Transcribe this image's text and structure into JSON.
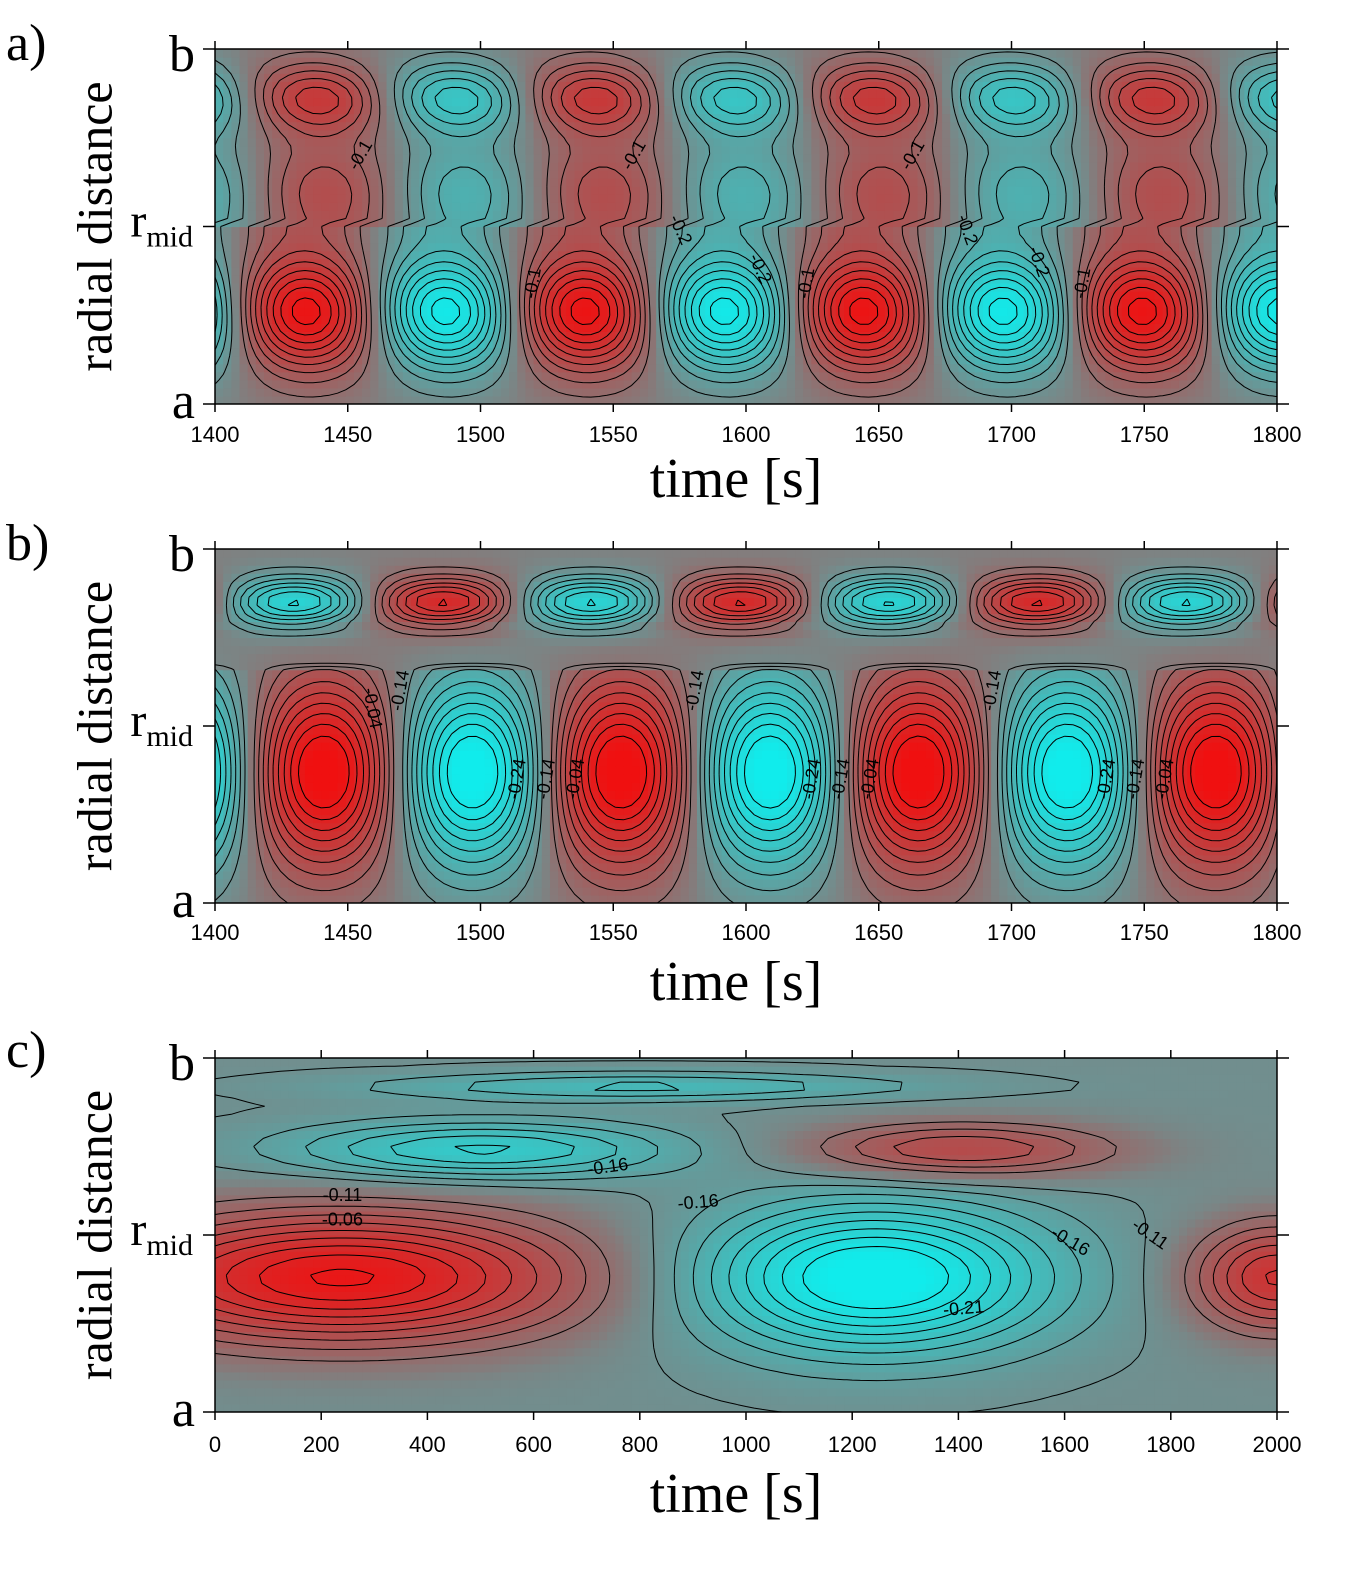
{
  "colors": {
    "positive": "#f01010",
    "negative": "#10ecec",
    "neutral": "#808080",
    "contour": "#000000"
  },
  "chart_data": [
    {
      "type": "heatmap",
      "panel_label": "a)",
      "xlabel": "time [s]",
      "ylabel": "radial distance",
      "y_ticks": [
        "a",
        "r",
        "b"
      ],
      "y_tick_sub": "mid",
      "x_ticks": [
        "1400",
        "1450",
        "1500",
        "1550",
        "1600",
        "1650",
        "1700",
        "1750",
        "1800"
      ],
      "xlim": [
        1400,
        1800
      ],
      "contour_labels": [
        "-0.1",
        "-0.2"
      ],
      "labels": [
        {
          "text": "-0.1",
          "x": 1455,
          "y": 0.7,
          "rot": -60
        },
        {
          "text": "-0.1",
          "x": 1520,
          "y": 0.34,
          "rot": -80
        },
        {
          "text": "-0.1",
          "x": 1558,
          "y": 0.7,
          "rot": -60
        },
        {
          "text": "-0.2",
          "x": 1575,
          "y": 0.49,
          "rot": 65
        },
        {
          "text": "-0.2",
          "x": 1605,
          "y": 0.38,
          "rot": 65
        },
        {
          "text": "-0.1",
          "x": 1623,
          "y": 0.34,
          "rot": -80
        },
        {
          "text": "-0.1",
          "x": 1663,
          "y": 0.7,
          "rot": -60
        },
        {
          "text": "-0.2",
          "x": 1683,
          "y": 0.49,
          "rot": 70
        },
        {
          "text": "-0.2",
          "x": 1710,
          "y": 0.4,
          "rot": 70
        },
        {
          "text": "-0.1",
          "x": 1727,
          "y": 0.34,
          "rot": -80
        }
      ]
    },
    {
      "type": "heatmap",
      "panel_label": "b)",
      "xlabel": "time [s]",
      "ylabel": "radial distance",
      "y_ticks": [
        "a",
        "r",
        "b"
      ],
      "y_tick_sub": "mid",
      "x_ticks": [
        "1400",
        "1450",
        "1500",
        "1550",
        "1600",
        "1650",
        "1700",
        "1750",
        "1800"
      ],
      "xlim": [
        1400,
        1800
      ],
      "contour_labels": [
        "-0.04",
        "-0.14",
        "-0.24"
      ],
      "labels": [
        {
          "text": "-0.04",
          "x": 1459,
          "y": 0.55,
          "rot": 80
        },
        {
          "text": "-0.14",
          "x": 1470,
          "y": 0.6,
          "rot": -80
        },
        {
          "text": "-0.24",
          "x": 1514,
          "y": 0.35,
          "rot": -80
        },
        {
          "text": "-0.14",
          "x": 1525,
          "y": 0.35,
          "rot": -80
        },
        {
          "text": "-0.04",
          "x": 1536,
          "y": 0.35,
          "rot": -80
        },
        {
          "text": "-0.14",
          "x": 1581,
          "y": 0.6,
          "rot": -80
        },
        {
          "text": "-0.24",
          "x": 1625,
          "y": 0.35,
          "rot": -80
        },
        {
          "text": "-0.14",
          "x": 1636,
          "y": 0.35,
          "rot": -80
        },
        {
          "text": "-0.04",
          "x": 1647,
          "y": 0.35,
          "rot": -80
        },
        {
          "text": "-0.14",
          "x": 1693,
          "y": 0.6,
          "rot": -80
        },
        {
          "text": "-0.24",
          "x": 1736,
          "y": 0.35,
          "rot": -80
        },
        {
          "text": "-0.14",
          "x": 1747,
          "y": 0.35,
          "rot": -80
        },
        {
          "text": "-0.04",
          "x": 1758,
          "y": 0.35,
          "rot": -80
        }
      ]
    },
    {
      "type": "heatmap",
      "panel_label": "c)",
      "xlabel": "time [s]",
      "ylabel": "radial distance",
      "y_ticks": [
        "a",
        "r",
        "b"
      ],
      "y_tick_sub": "mid",
      "x_ticks": [
        "0",
        "200",
        "400",
        "600",
        "800",
        "1000",
        "1200",
        "1400",
        "1600",
        "1800",
        "2000"
      ],
      "xlim": [
        0,
        2000
      ],
      "contour_labels": [
        "-0.06",
        "-0.11",
        "-0.16",
        "-0.21"
      ],
      "labels": [
        {
          "text": "-0.11",
          "x": 240,
          "y": 0.61,
          "rot": 0
        },
        {
          "text": "-0.06",
          "x": 240,
          "y": 0.54,
          "rot": 0
        },
        {
          "text": "-0.16",
          "x": 740,
          "y": 0.69,
          "rot": -8
        },
        {
          "text": "-0.16",
          "x": 910,
          "y": 0.59,
          "rot": -5
        },
        {
          "text": "-0.16",
          "x": 1610,
          "y": 0.48,
          "rot": 30
        },
        {
          "text": "-0.11",
          "x": 1760,
          "y": 0.5,
          "rot": 35
        },
        {
          "text": "-0.21",
          "x": 1410,
          "y": 0.29,
          "rot": -5
        }
      ]
    }
  ]
}
